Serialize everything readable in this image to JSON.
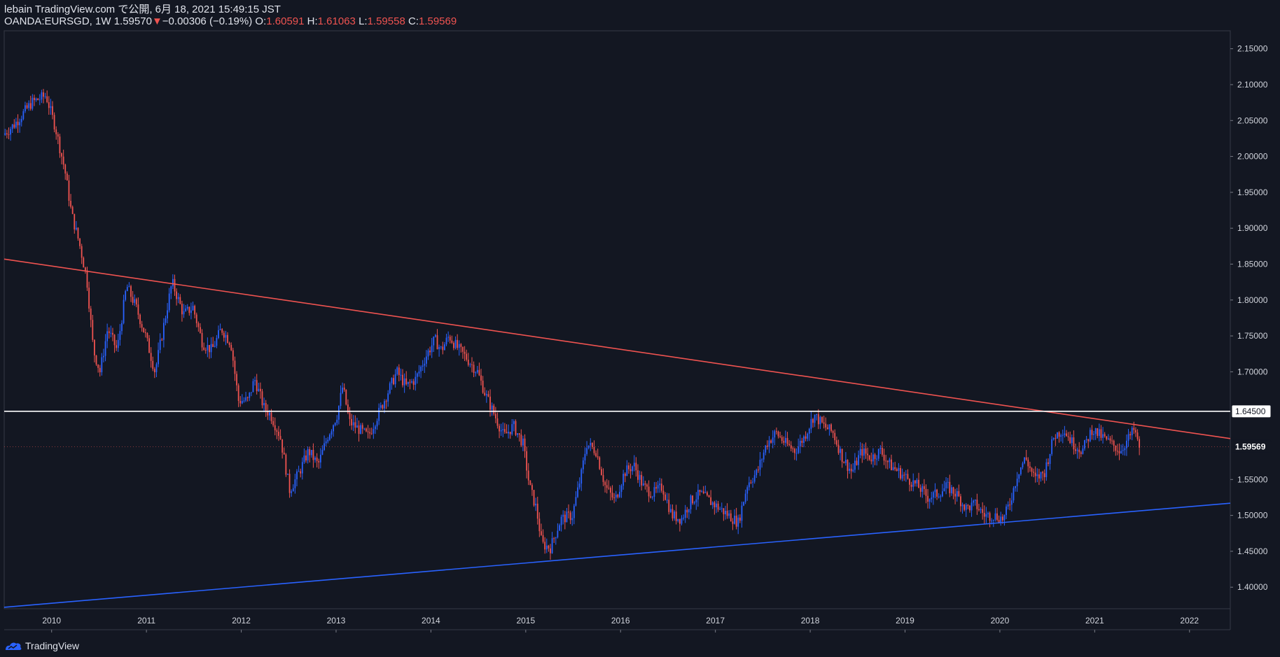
{
  "header": {
    "published_line": "lebain TradingView.com で公開, 6月 18, 2021 15:49:15 JST",
    "symbol": "OANDA:EURSGD, 1W",
    "last": "1.59570",
    "change_arrow": "▼",
    "change": "−0.00306 (−0.19%)",
    "open_label": "O:",
    "open": "1.60591",
    "high_label": "H:",
    "high": "1.61063",
    "low_label": "L:",
    "low": "1.59558",
    "close_label": "C:",
    "close": "1.59569"
  },
  "footer": {
    "brand": "TradingView",
    "logo_icon": "tradingview-logo-icon"
  },
  "colors": {
    "background": "#131722",
    "up": "#2962ff",
    "down": "#ef5350",
    "resistance": "#ef5350",
    "support": "#2962ff",
    "horizontal": "#ffffff"
  },
  "chart_data": {
    "type": "candlestick",
    "x_ticks": [
      "2010",
      "2011",
      "2012",
      "2013",
      "2014",
      "2015",
      "2016",
      "2017",
      "2018",
      "2019",
      "2020",
      "2021",
      "2022"
    ],
    "y_ticks": [
      "2.15000",
      "2.10000",
      "2.05000",
      "2.00000",
      "1.95000",
      "1.90000",
      "1.85000",
      "1.80000",
      "1.75000",
      "1.70000",
      "1.65000",
      "1.60000",
      "1.55000",
      "1.50000",
      "1.45000",
      "1.40000"
    ],
    "x_range": [
      2009.5,
      2022.43
    ],
    "y_range": [
      1.37,
      2.175
    ],
    "grid": false,
    "horizontal_line": {
      "value": 1.645,
      "label": "1.64500"
    },
    "last_price_label": "1.59569",
    "last_price": 1.59569,
    "trendlines": [
      {
        "name": "resistance",
        "points": [
          [
            2009.5,
            1.857
          ],
          [
            2022.43,
            1.607
          ]
        ]
      },
      {
        "name": "support",
        "points": [
          [
            2009.5,
            1.372
          ],
          [
            2022.43,
            1.517
          ]
        ]
      }
    ],
    "price_path": [
      [
        2009.5,
        2.03
      ],
      [
        2009.62,
        2.045
      ],
      [
        2009.8,
        2.075
      ],
      [
        2009.95,
        2.085
      ],
      [
        2010.05,
        2.04
      ],
      [
        2010.15,
        1.98
      ],
      [
        2010.22,
        1.92
      ],
      [
        2010.3,
        1.88
      ],
      [
        2010.38,
        1.83
      ],
      [
        2010.45,
        1.73
      ],
      [
        2010.52,
        1.7
      ],
      [
        2010.6,
        1.76
      ],
      [
        2010.7,
        1.73
      ],
      [
        2010.8,
        1.82
      ],
      [
        2010.9,
        1.79
      ],
      [
        2011.0,
        1.75
      ],
      [
        2011.1,
        1.7
      ],
      [
        2011.2,
        1.77
      ],
      [
        2011.28,
        1.825
      ],
      [
        2011.4,
        1.78
      ],
      [
        2011.5,
        1.79
      ],
      [
        2011.6,
        1.74
      ],
      [
        2011.7,
        1.73
      ],
      [
        2011.8,
        1.76
      ],
      [
        2011.9,
        1.74
      ],
      [
        2011.98,
        1.66
      ],
      [
        2012.08,
        1.66
      ],
      [
        2012.15,
        1.69
      ],
      [
        2012.25,
        1.65
      ],
      [
        2012.32,
        1.64
      ],
      [
        2012.42,
        1.61
      ],
      [
        2012.52,
        1.535
      ],
      [
        2012.62,
        1.56
      ],
      [
        2012.72,
        1.59
      ],
      [
        2012.82,
        1.57
      ],
      [
        2012.92,
        1.61
      ],
      [
        2013.02,
        1.64
      ],
      [
        2013.08,
        1.68
      ],
      [
        2013.15,
        1.63
      ],
      [
        2013.25,
        1.62
      ],
      [
        2013.35,
        1.61
      ],
      [
        2013.45,
        1.64
      ],
      [
        2013.55,
        1.67
      ],
      [
        2013.65,
        1.7
      ],
      [
        2013.75,
        1.68
      ],
      [
        2013.85,
        1.69
      ],
      [
        2013.95,
        1.72
      ],
      [
        2014.05,
        1.745
      ],
      [
        2014.12,
        1.73
      ],
      [
        2014.2,
        1.75
      ],
      [
        2014.28,
        1.735
      ],
      [
        2014.38,
        1.72
      ],
      [
        2014.5,
        1.7
      ],
      [
        2014.58,
        1.67
      ],
      [
        2014.68,
        1.64
      ],
      [
        2014.78,
        1.61
      ],
      [
        2014.88,
        1.625
      ],
      [
        2014.98,
        1.6
      ],
      [
        2015.05,
        1.54
      ],
      [
        2015.12,
        1.51
      ],
      [
        2015.18,
        1.46
      ],
      [
        2015.27,
        1.455
      ],
      [
        2015.38,
        1.495
      ],
      [
        2015.5,
        1.5
      ],
      [
        2015.6,
        1.56
      ],
      [
        2015.65,
        1.6
      ],
      [
        2015.75,
        1.59
      ],
      [
        2015.85,
        1.54
      ],
      [
        2015.95,
        1.52
      ],
      [
        2016.05,
        1.56
      ],
      [
        2016.15,
        1.57
      ],
      [
        2016.25,
        1.54
      ],
      [
        2016.35,
        1.53
      ],
      [
        2016.45,
        1.54
      ],
      [
        2016.55,
        1.5
      ],
      [
        2016.65,
        1.495
      ],
      [
        2016.75,
        1.52
      ],
      [
        2016.85,
        1.53
      ],
      [
        2016.95,
        1.52
      ],
      [
        2017.05,
        1.51
      ],
      [
        2017.15,
        1.5
      ],
      [
        2017.25,
        1.49
      ],
      [
        2017.35,
        1.545
      ],
      [
        2017.45,
        1.56
      ],
      [
        2017.55,
        1.6
      ],
      [
        2017.65,
        1.615
      ],
      [
        2017.75,
        1.6
      ],
      [
        2017.85,
        1.59
      ],
      [
        2017.95,
        1.61
      ],
      [
        2018.05,
        1.64
      ],
      [
        2018.15,
        1.625
      ],
      [
        2018.25,
        1.615
      ],
      [
        2018.35,
        1.58
      ],
      [
        2018.45,
        1.56
      ],
      [
        2018.55,
        1.59
      ],
      [
        2018.65,
        1.58
      ],
      [
        2018.75,
        1.59
      ],
      [
        2018.85,
        1.57
      ],
      [
        2018.95,
        1.56
      ],
      [
        2019.05,
        1.55
      ],
      [
        2019.15,
        1.54
      ],
      [
        2019.25,
        1.525
      ],
      [
        2019.35,
        1.53
      ],
      [
        2019.45,
        1.54
      ],
      [
        2019.55,
        1.53
      ],
      [
        2019.65,
        1.51
      ],
      [
        2019.75,
        1.515
      ],
      [
        2019.85,
        1.5
      ],
      [
        2019.95,
        1.5
      ],
      [
        2020.05,
        1.495
      ],
      [
        2020.12,
        1.52
      ],
      [
        2020.2,
        1.56
      ],
      [
        2020.28,
        1.58
      ],
      [
        2020.38,
        1.55
      ],
      [
        2020.48,
        1.56
      ],
      [
        2020.58,
        1.61
      ],
      [
        2020.68,
        1.62
      ],
      [
        2020.78,
        1.6
      ],
      [
        2020.88,
        1.59
      ],
      [
        2020.98,
        1.62
      ],
      [
        2021.08,
        1.61
      ],
      [
        2021.18,
        1.6
      ],
      [
        2021.28,
        1.59
      ],
      [
        2021.38,
        1.61
      ],
      [
        2021.43,
        1.62
      ],
      [
        2021.47,
        1.596
      ]
    ]
  }
}
